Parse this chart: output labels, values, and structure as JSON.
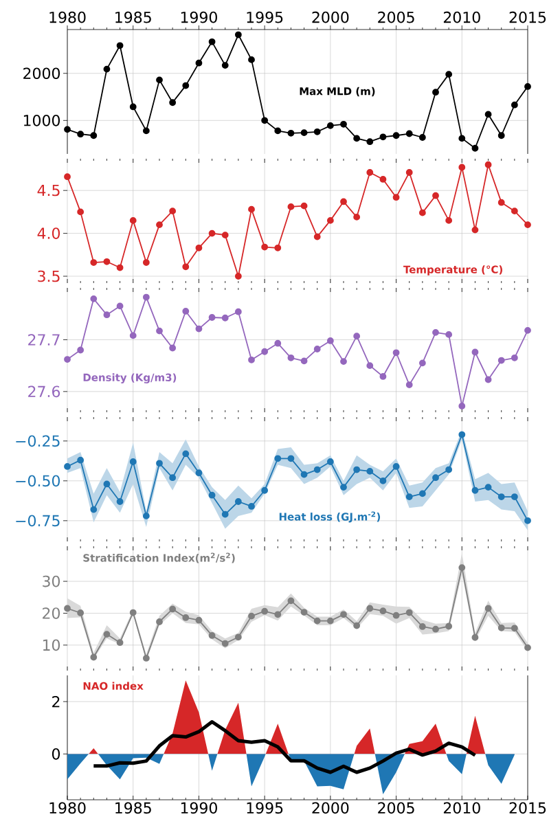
{
  "chart_data": [
    {
      "type": "line",
      "x": [
        1980,
        1981,
        1982,
        1983,
        1984,
        1985,
        1986,
        1987,
        1988,
        1989,
        1990,
        1991,
        1992,
        1993,
        1994,
        1995,
        1996,
        1997,
        1998,
        1999,
        2000,
        2001,
        2002,
        2003,
        2004,
        2005,
        2006,
        2007,
        2008,
        2009,
        2010,
        2011,
        2012,
        2013,
        2014,
        2015
      ],
      "xlim": [
        1980,
        2015
      ],
      "xticks": [
        1980,
        1985,
        1990,
        1995,
        2000,
        2005,
        2010,
        2015
      ],
      "ylim": [
        290,
        2930
      ],
      "yticks": [
        1000,
        2000
      ],
      "grid": true,
      "marker": "circle",
      "legend": "center",
      "series": [
        {
          "name": "Max MLD (m)",
          "color": "#000000",
          "values": [
            810,
            710,
            680,
            2090,
            2590,
            1290,
            780,
            1860,
            1380,
            1740,
            2220,
            2670,
            2170,
            2820,
            2290,
            1000,
            780,
            730,
            740,
            760,
            890,
            920,
            620,
            550,
            650,
            680,
            720,
            640,
            1600,
            1980,
            620,
            410,
            1130,
            680,
            1330,
            1720
          ]
        }
      ]
    },
    {
      "type": "line",
      "x": [
        1980,
        1981,
        1982,
        1983,
        1984,
        1985,
        1986,
        1987,
        1988,
        1989,
        1990,
        1991,
        1992,
        1993,
        1994,
        1995,
        1996,
        1997,
        1998,
        1999,
        2000,
        2001,
        2002,
        2003,
        2004,
        2005,
        2006,
        2007,
        2008,
        2009,
        2010,
        2011,
        2012,
        2013,
        2014,
        2015
      ],
      "xlim": [
        1980,
        2015
      ],
      "xticks": [
        1980,
        1985,
        1990,
        1995,
        2000,
        2005,
        2010,
        2015
      ],
      "tick_labels": "y",
      "ylim": [
        3.42,
        4.87
      ],
      "yticks": [
        {
          "value": 3.5,
          "label": "3.5"
        },
        {
          "value": 4,
          "label": "4.0"
        },
        {
          "value": 4.5,
          "label": "4.5"
        }
      ],
      "grid": true,
      "marker": "circle",
      "legend": "bottom right",
      "series": [
        {
          "name": "Temperature (°C)",
          "color": "#d62728",
          "values": [
            4.66,
            4.25,
            3.66,
            3.67,
            3.6,
            4.15,
            3.66,
            4.1,
            4.26,
            3.61,
            3.83,
            4.0,
            3.98,
            3.5,
            4.28,
            3.84,
            3.83,
            4.31,
            4.32,
            3.96,
            4.15,
            4.37,
            4.19,
            4.71,
            4.63,
            4.42,
            4.71,
            4.24,
            4.44,
            4.15,
            4.77,
            4.04,
            4.8,
            4.36,
            4.26,
            4.1
          ]
        }
      ]
    },
    {
      "type": "line",
      "x": [
        1980,
        1981,
        1982,
        1983,
        1984,
        1985,
        1986,
        1987,
        1988,
        1989,
        1990,
        1991,
        1992,
        1993,
        1994,
        1995,
        1996,
        1997,
        1998,
        1999,
        2000,
        2001,
        2002,
        2003,
        2004,
        2005,
        2006,
        2007,
        2008,
        2009,
        2010,
        2011,
        2012,
        2013,
        2014,
        2015
      ],
      "xlim": [
        1980,
        2015
      ],
      "xticks": [
        1980,
        1985,
        1990,
        1995,
        2000,
        2005,
        2010,
        2015
      ],
      "tick_labels": "y",
      "ylim": [
        27.56,
        27.8
      ],
      "yticks": [
        27.6,
        27.7
      ],
      "grid": true,
      "marker": "circle",
      "legend": "bottom left",
      "series": [
        {
          "name": "Density (Kg/m3)",
          "color": "#9467bd",
          "values": [
            27.662,
            27.68,
            27.779,
            27.748,
            27.765,
            27.708,
            27.782,
            27.717,
            27.684,
            27.755,
            27.721,
            27.743,
            27.742,
            27.754,
            27.661,
            27.677,
            27.693,
            27.665,
            27.659,
            27.682,
            27.698,
            27.658,
            27.707,
            27.65,
            27.629,
            27.675,
            27.613,
            27.655,
            27.714,
            27.71,
            27.572,
            27.676,
            27.623,
            27.66,
            27.665,
            27.718
          ]
        }
      ]
    },
    {
      "type": "line",
      "x": [
        1980,
        1981,
        1982,
        1983,
        1984,
        1985,
        1986,
        1987,
        1988,
        1989,
        1990,
        1991,
        1992,
        1993,
        1994,
        1995,
        1996,
        1997,
        1998,
        1999,
        2000,
        2001,
        2002,
        2003,
        2004,
        2005,
        2006,
        2007,
        2008,
        2009,
        2010,
        2011,
        2012,
        2013,
        2014,
        2015
      ],
      "xlim": [
        1980,
        2015
      ],
      "xticks": [
        1980,
        1985,
        1990,
        1995,
        2000,
        2005,
        2010,
        2015
      ],
      "tick_labels": "y",
      "ylim": [
        -0.88,
        -0.1
      ],
      "yticks": [
        {
          "value": -0.75,
          "label": "−0.75"
        },
        {
          "value": -0.5,
          "label": "−0.50"
        },
        {
          "value": -0.25,
          "label": "−0.25"
        }
      ],
      "grid": true,
      "marker": "circle",
      "legend": "bottom",
      "series": [
        {
          "name": "Heat loss (GJ.m$^{-2}$)",
          "color": "#1f77b4",
          "values": [
            -0.41,
            -0.37,
            -0.68,
            -0.52,
            -0.63,
            -0.38,
            -0.72,
            -0.39,
            -0.48,
            -0.33,
            -0.45,
            -0.59,
            -0.71,
            -0.63,
            -0.66,
            -0.56,
            -0.36,
            -0.36,
            -0.46,
            -0.43,
            -0.38,
            -0.54,
            -0.43,
            -0.44,
            -0.5,
            -0.41,
            -0.6,
            -0.58,
            -0.48,
            -0.43,
            -0.21,
            -0.56,
            -0.54,
            -0.6,
            -0.6,
            -0.75
          ],
          "upper": [
            -0.36,
            -0.32,
            -0.58,
            -0.42,
            -0.57,
            -0.26,
            -0.69,
            -0.32,
            -0.39,
            -0.24,
            -0.41,
            -0.54,
            -0.62,
            -0.53,
            -0.61,
            -0.52,
            -0.3,
            -0.29,
            -0.4,
            -0.39,
            -0.34,
            -0.5,
            -0.34,
            -0.4,
            -0.44,
            -0.36,
            -0.53,
            -0.51,
            -0.42,
            -0.39,
            -0.18,
            -0.49,
            -0.45,
            -0.52,
            -0.51,
            -0.69
          ],
          "lower": [
            -0.45,
            -0.42,
            -0.76,
            -0.59,
            -0.7,
            -0.52,
            -0.79,
            -0.42,
            -0.56,
            -0.4,
            -0.48,
            -0.64,
            -0.8,
            -0.72,
            -0.7,
            -0.58,
            -0.4,
            -0.42,
            -0.52,
            -0.48,
            -0.41,
            -0.59,
            -0.52,
            -0.48,
            -0.56,
            -0.45,
            -0.67,
            -0.66,
            -0.56,
            -0.46,
            -0.24,
            -0.63,
            -0.62,
            -0.68,
            -0.69,
            -0.81
          ]
        }
      ]
    },
    {
      "type": "line",
      "x": [
        1980,
        1981,
        1982,
        1983,
        1984,
        1985,
        1986,
        1987,
        1988,
        1989,
        1990,
        1991,
        1992,
        1993,
        1994,
        1995,
        1996,
        1997,
        1998,
        1999,
        2000,
        2001,
        2002,
        2003,
        2004,
        2005,
        2006,
        2007,
        2008,
        2009,
        2010,
        2011,
        2012,
        2013,
        2014,
        2015
      ],
      "xlim": [
        1980,
        2015
      ],
      "xticks": [
        1980,
        1985,
        1990,
        1995,
        2000,
        2005,
        2010,
        2015
      ],
      "tick_labels": "y",
      "ylim": [
        2,
        41
      ],
      "yticks": [
        10,
        20,
        30
      ],
      "grid": true,
      "marker": "circle",
      "legend": "top left",
      "series": [
        {
          "name": "Stratification Index(m$^{2}$/s$^{2}$)",
          "color": "#7f7f7f",
          "values": [
            21.5,
            20.1,
            6.2,
            13.4,
            10.8,
            20.2,
            5.9,
            17.3,
            21.3,
            18.6,
            17.8,
            13.0,
            10.5,
            12.5,
            19.1,
            20.6,
            19.6,
            23.9,
            20.3,
            17.6,
            17.6,
            19.6,
            16.1,
            21.5,
            20.7,
            19.3,
            20.2,
            15.8,
            15.0,
            15.9,
            34.3,
            12.4,
            21.5,
            15.4,
            15.3,
            9.2
          ],
          "upper": [
            24.7,
            22.3,
            7.6,
            16.2,
            12.1,
            21.1,
            7.1,
            19.2,
            23.0,
            20.5,
            19.4,
            14.4,
            12.1,
            13.8,
            21.4,
            22.5,
            21.9,
            26.2,
            21.7,
            18.9,
            18.9,
            21.2,
            17.5,
            23.4,
            22.7,
            22.1,
            22.0,
            17.9,
            16.7,
            16.9,
            38.9,
            13.8,
            23.9,
            16.9,
            17.1,
            10.6
          ],
          "lower": [
            18.5,
            18.7,
            5.6,
            12.1,
            10.3,
            19.6,
            5.1,
            16.2,
            20.0,
            16.9,
            16.5,
            11.8,
            9.0,
            11.6,
            17.3,
            19.4,
            17.7,
            22.1,
            19.3,
            16.2,
            16.2,
            18.5,
            15.2,
            19.7,
            19.2,
            16.7,
            18.5,
            13.3,
            13.7,
            14.4,
            32.3,
            11.4,
            19.2,
            14.4,
            14.1,
            8.1
          ]
        }
      ]
    },
    {
      "type": "area",
      "xlim": [
        1980,
        2015
      ],
      "xticks": [
        1980,
        1985,
        1990,
        1995,
        2000,
        2005,
        2010,
        2015
      ],
      "ylim": [
        -1.75,
        3.0
      ],
      "yticks": [
        0,
        2
      ],
      "grid": true,
      "legend": "top left",
      "series": [
        {
          "name": "NAO index",
          "color": "#d62728",
          "x": [
            1980,
            1981,
            1982,
            1983,
            1984,
            1985,
            1986,
            1987,
            1988,
            1989,
            1990,
            1991,
            1992,
            1993,
            1994,
            1995,
            1996,
            1997,
            1998,
            1999,
            2000,
            2001,
            2002,
            2003,
            2004,
            2005,
            2006,
            2007,
            2008,
            2009,
            2010,
            2011,
            2012,
            2013,
            2014
          ],
          "colors": [
            "#1f77b4",
            "#1f77b4",
            "#d62728",
            "#1f77b4",
            "#1f77b4",
            "#1f77b4",
            "#1f77b4",
            "#1f77b4",
            "#d62728",
            "#d62728",
            "#d62728",
            "#1f77b4",
            "#d62728",
            "#d62728",
            "#1f77b4",
            "#1f77b4",
            "#d62728",
            "#1f77b4",
            "#1f77b4",
            "#1f77b4",
            "#1f77b4",
            "#1f77b4",
            "#d62728",
            "#d62728",
            "#1f77b4",
            "#1f77b4",
            "#d62728",
            "#d62728",
            "#d62728",
            "#1f77b4",
            "#1f77b4",
            "#d62728",
            "#1f77b4",
            "#1f77b4",
            "#1f77b4"
          ],
          "values": [
            -0.97,
            -0.36,
            0.22,
            -0.43,
            -0.97,
            -0.16,
            -0.14,
            -0.38,
            0.78,
            2.81,
            1.59,
            -0.64,
            0.92,
            1.96,
            -1.24,
            -0.1,
            1.16,
            -0.27,
            -0.27,
            -1.24,
            -1.22,
            -1.35,
            0.31,
            0.97,
            -1.54,
            -0.7,
            0.38,
            0.49,
            1.16,
            -0.27,
            -0.77,
            1.46,
            -0.43,
            -1.14,
            -0.03
          ]
        },
        {
          "type": "line",
          "color": "#000000",
          "x": [
            1982,
            1983,
            1984,
            1985,
            1986,
            1987,
            1988,
            1989,
            1990,
            1991,
            1992,
            1993,
            1994,
            1995,
            1996,
            1997,
            1998,
            1999,
            2000,
            2001,
            2002,
            2003,
            2004,
            2005,
            2006,
            2007,
            2008,
            2009,
            2010,
            2011
          ],
          "values": [
            -0.46,
            -0.46,
            -0.34,
            -0.35,
            -0.27,
            0.31,
            0.7,
            0.65,
            0.85,
            1.23,
            0.89,
            0.51,
            0.45,
            0.51,
            0.27,
            -0.26,
            -0.26,
            -0.54,
            -0.7,
            -0.47,
            -0.7,
            -0.54,
            -0.27,
            0.03,
            0.18,
            -0.04,
            0.11,
            0.41,
            0.27,
            -0.05
          ]
        }
      ]
    }
  ]
}
